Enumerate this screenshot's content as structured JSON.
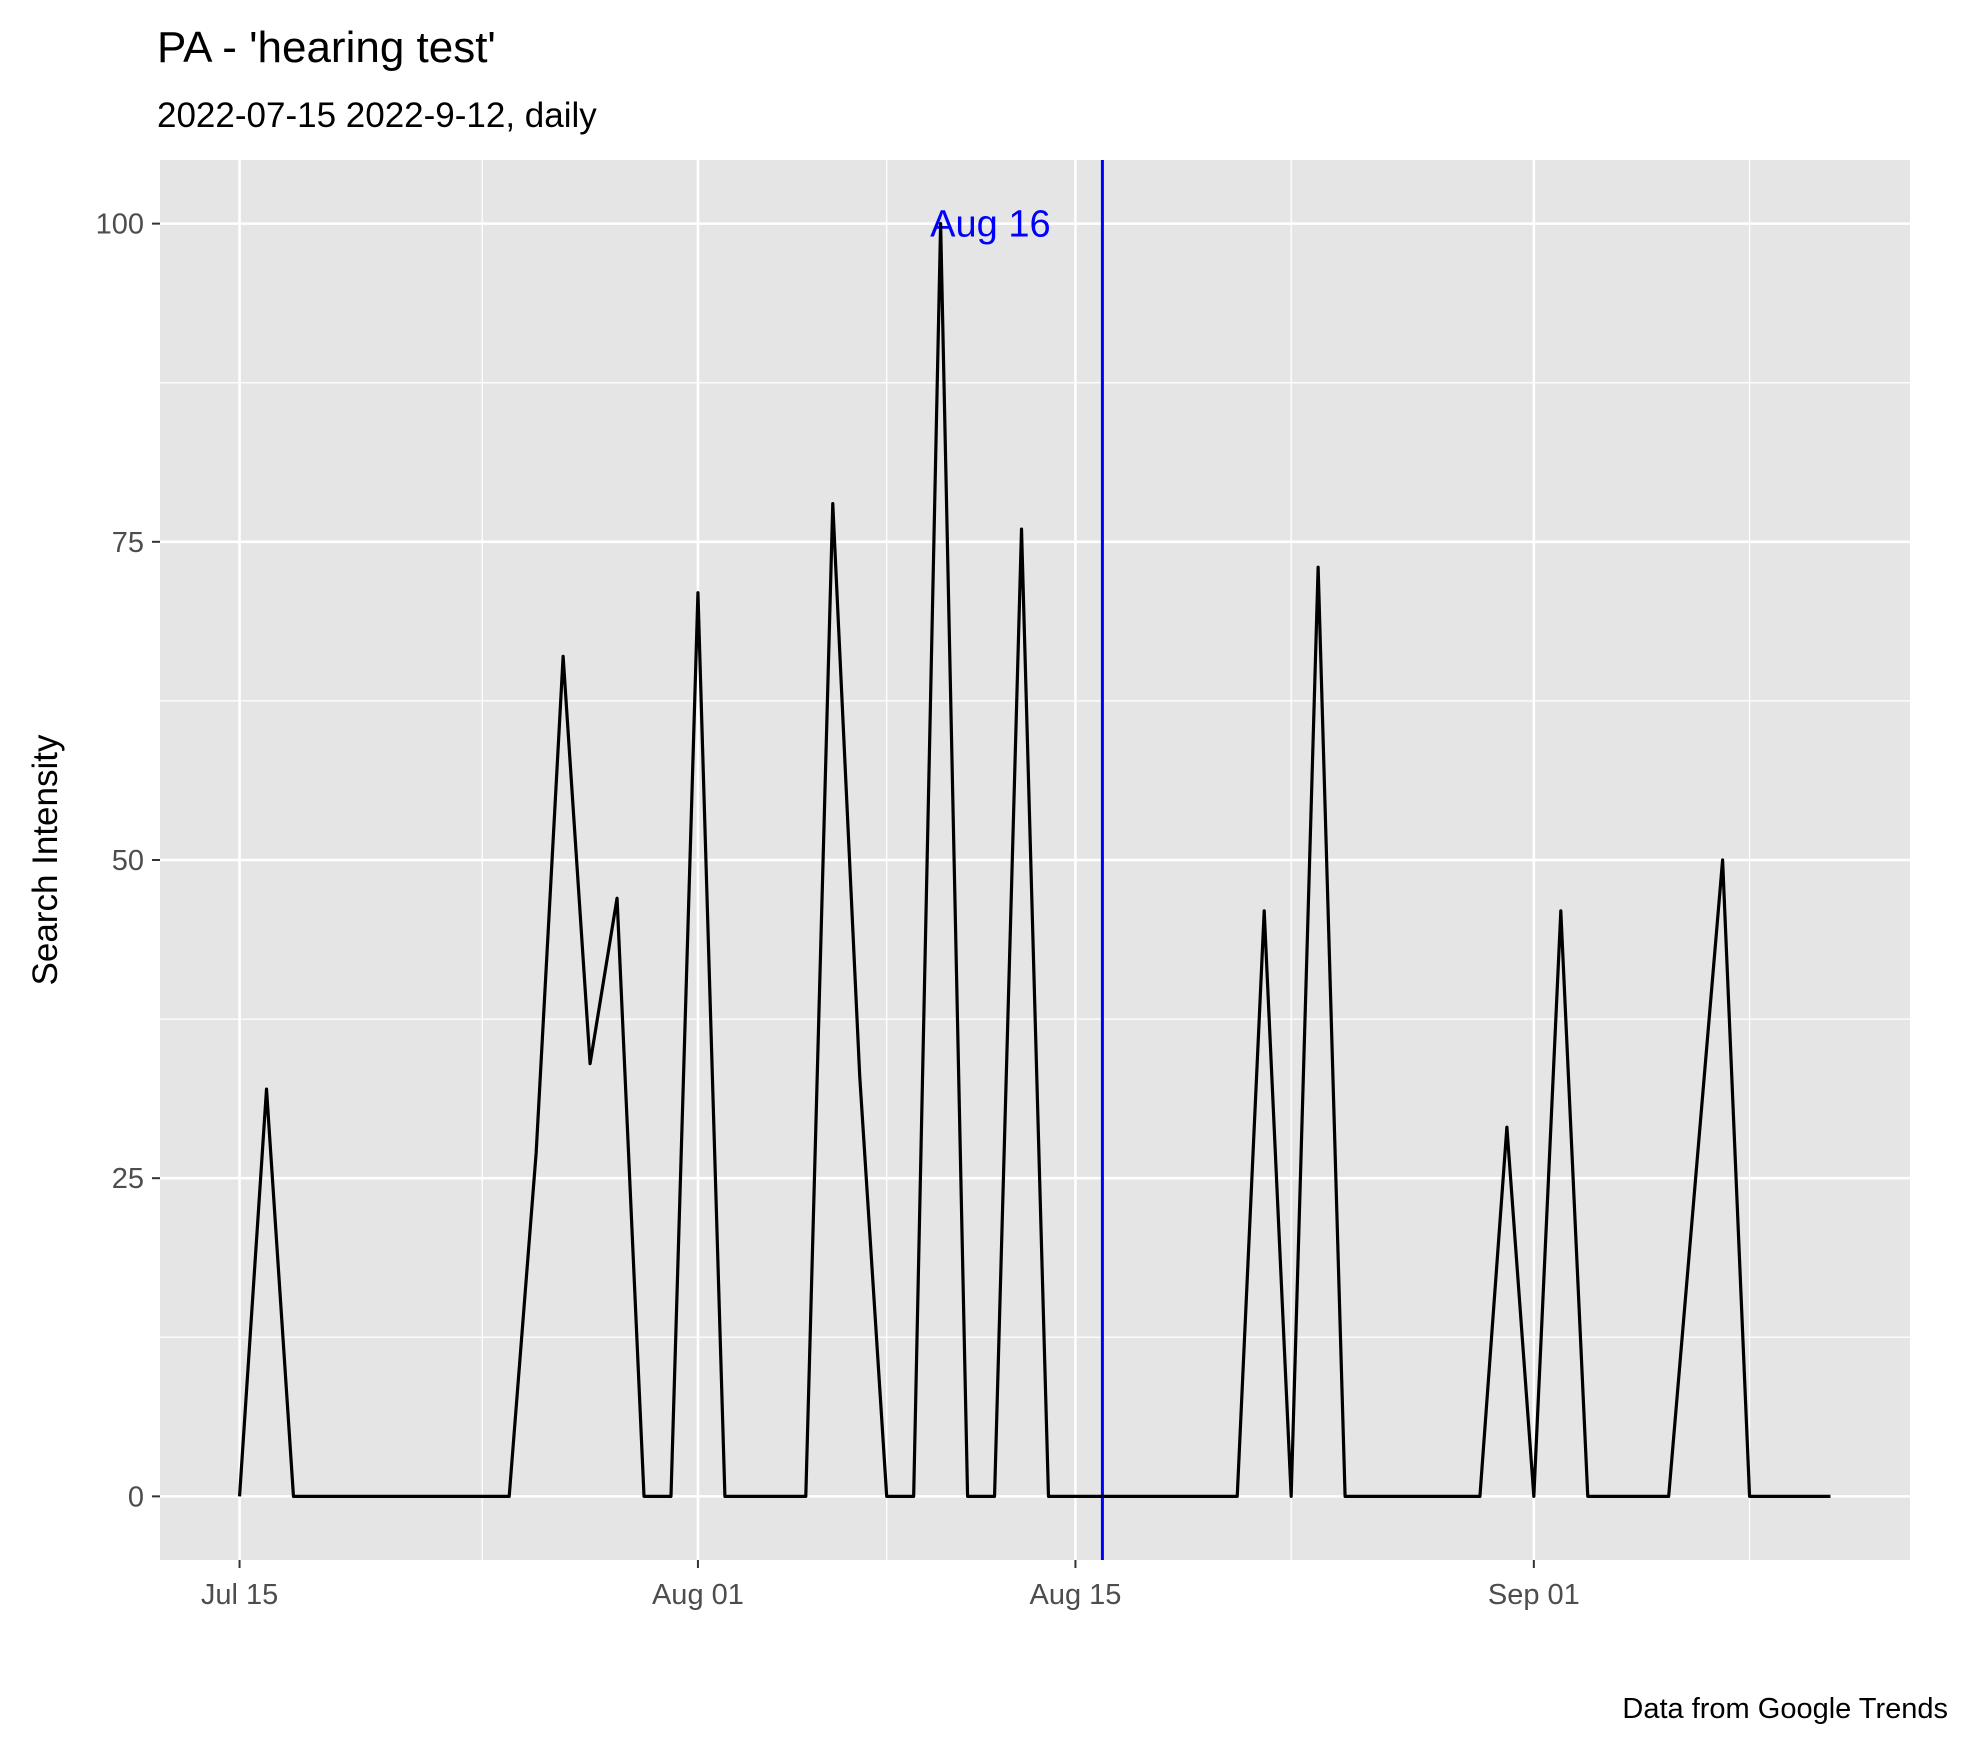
{
  "chart_data": {
    "type": "line",
    "title": "PA  - 'hearing test'",
    "subtitle": "2022-07-15 2022-9-12, daily",
    "caption": "Data from Google Trends",
    "xlabel": "",
    "ylabel": "Search Intensity",
    "x_start": "2022-07-15",
    "x_end": "2022-09-12",
    "x_tick_labels": [
      {
        "date": "2022-07-15",
        "label": "Jul 15"
      },
      {
        "date": "2022-08-01",
        "label": "Aug 01"
      },
      {
        "date": "2022-08-15",
        "label": "Aug 15"
      },
      {
        "date": "2022-09-01",
        "label": "Sep 01"
      }
    ],
    "x_minor_grid_dates": [
      "2022-07-24",
      "2022-08-08",
      "2022-08-23",
      "2022-09-09"
    ],
    "y_ticks": [
      0,
      25,
      50,
      75,
      100
    ],
    "ylim": [
      -5,
      105
    ],
    "grid": true,
    "series": [
      {
        "color": "#000000",
        "dates": [
          "2022-07-15",
          "2022-07-16",
          "2022-07-17",
          "2022-07-18",
          "2022-07-19",
          "2022-07-20",
          "2022-07-21",
          "2022-07-22",
          "2022-07-23",
          "2022-07-24",
          "2022-07-25",
          "2022-07-26",
          "2022-07-27",
          "2022-07-28",
          "2022-07-29",
          "2022-07-30",
          "2022-07-31",
          "2022-08-01",
          "2022-08-02",
          "2022-08-03",
          "2022-08-04",
          "2022-08-05",
          "2022-08-06",
          "2022-08-07",
          "2022-08-08",
          "2022-08-09",
          "2022-08-10",
          "2022-08-11",
          "2022-08-12",
          "2022-08-13",
          "2022-08-14",
          "2022-08-15",
          "2022-08-16",
          "2022-08-17",
          "2022-08-18",
          "2022-08-19",
          "2022-08-20",
          "2022-08-21",
          "2022-08-22",
          "2022-08-23",
          "2022-08-24",
          "2022-08-25",
          "2022-08-26",
          "2022-08-27",
          "2022-08-28",
          "2022-08-29",
          "2022-08-30",
          "2022-08-31",
          "2022-09-01",
          "2022-09-02",
          "2022-09-03",
          "2022-09-04",
          "2022-09-05",
          "2022-09-06",
          "2022-09-07",
          "2022-09-08",
          "2022-09-09",
          "2022-09-10",
          "2022-09-11",
          "2022-09-12"
        ],
        "values": [
          0,
          32,
          0,
          0,
          0,
          0,
          0,
          0,
          0,
          0,
          0,
          27,
          66,
          34,
          47,
          0,
          0,
          71,
          0,
          0,
          0,
          0,
          78,
          33,
          0,
          0,
          100,
          0,
          0,
          76,
          0,
          0,
          0,
          0,
          0,
          0,
          0,
          0,
          46,
          0,
          73,
          0,
          0,
          0,
          0,
          0,
          0,
          29,
          0,
          46,
          0,
          0,
          0,
          0,
          25,
          50,
          0,
          0,
          0,
          0
        ]
      }
    ],
    "vline": {
      "date": "2022-08-16",
      "label": "Aug 16",
      "color": "#0000ff"
    },
    "colors": {
      "panel_bg": "#e5e5e5",
      "grid": "#ffffff",
      "line": "#000000",
      "vline": "#0000ff"
    }
  }
}
